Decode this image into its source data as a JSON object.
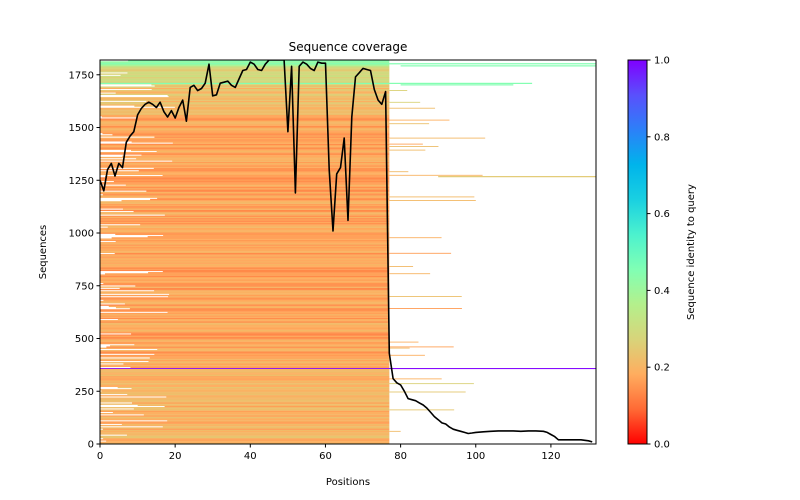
{
  "chart_data": {
    "type": "heatmap",
    "title": "Sequence coverage",
    "xlabel": "Positions",
    "ylabel": "Sequences",
    "xlim": [
      0,
      132
    ],
    "ylim": [
      0,
      1820
    ],
    "xticks": [
      0,
      20,
      40,
      60,
      80,
      100,
      120
    ],
    "yticks": [
      0,
      250,
      500,
      750,
      1000,
      1250,
      1500,
      1750
    ],
    "grid": false,
    "colorbar": {
      "label": "Sequence identity to query",
      "range": [
        0.0,
        1.0
      ],
      "ticks": [
        "0.0",
        "0.2",
        "0.4",
        "0.6",
        "0.8",
        "1.0"
      ],
      "colormap": "rainbow_r",
      "stops": [
        "#ff0000",
        "#ff6a35",
        "#ffad5f",
        "#d8d47a",
        "#b4f08c",
        "#80ffb4",
        "#4cf2ce",
        "#1ad0e1",
        "#00b4eb",
        "#2c80f8",
        "#5a50fc",
        "#8000ff"
      ]
    },
    "msa_bands": [
      {
        "from_seq": 1790,
        "to_seq": 1820,
        "from_pos": 0,
        "to_pos": 77,
        "identity": 0.42
      },
      {
        "from_seq": 1700,
        "to_seq": 1790,
        "from_pos": 0,
        "to_pos": 77,
        "identity": 0.27
      },
      {
        "from_seq": 1560,
        "to_seq": 1700,
        "from_pos": 0,
        "to_pos": 77,
        "identity": 0.22
      },
      {
        "from_seq": 360,
        "to_seq": 1560,
        "from_pos": 0,
        "to_pos": 77,
        "identity": 0.17
      },
      {
        "from_seq": 356,
        "to_seq": 360,
        "from_pos": 0,
        "to_pos": 132,
        "identity": 1.0
      },
      {
        "from_seq": 0,
        "to_seq": 356,
        "from_pos": 0,
        "to_pos": 77,
        "identity": 0.2
      }
    ],
    "series": [
      {
        "name": "coverage",
        "color": "#000000",
        "x": [
          0,
          1,
          2,
          3,
          4,
          5,
          6,
          7,
          8,
          9,
          10,
          11,
          12,
          13,
          14,
          15,
          16,
          17,
          18,
          19,
          20,
          21,
          22,
          23,
          24,
          25,
          26,
          27,
          28,
          29,
          30,
          31,
          32,
          33,
          34,
          35,
          36,
          37,
          38,
          39,
          40,
          41,
          42,
          43,
          44,
          45,
          46,
          47,
          48,
          49,
          50,
          51,
          52,
          53,
          54,
          55,
          56,
          57,
          58,
          59,
          60,
          61,
          62,
          63,
          64,
          65,
          66,
          67,
          68,
          69,
          70,
          71,
          72,
          73,
          74,
          75,
          76,
          77,
          78,
          79,
          80,
          81,
          82,
          83,
          84,
          85,
          86,
          87,
          88,
          89,
          90,
          91,
          92,
          93,
          94,
          95,
          96,
          97,
          98,
          99,
          100,
          102,
          104,
          106,
          108,
          110,
          112,
          114,
          116,
          118,
          119,
          120,
          121,
          122,
          124,
          126,
          128,
          130,
          131
        ],
        "y": [
          1250,
          1200,
          1300,
          1330,
          1270,
          1330,
          1310,
          1430,
          1460,
          1480,
          1560,
          1590,
          1610,
          1620,
          1610,
          1595,
          1620,
          1575,
          1550,
          1580,
          1545,
          1595,
          1630,
          1530,
          1690,
          1700,
          1675,
          1685,
          1710,
          1800,
          1650,
          1655,
          1710,
          1715,
          1720,
          1700,
          1690,
          1730,
          1770,
          1775,
          1810,
          1800,
          1775,
          1770,
          1800,
          1820,
          1820,
          1820,
          1820,
          1820,
          1480,
          1790,
          1190,
          1790,
          1810,
          1800,
          1780,
          1770,
          1810,
          1805,
          1805,
          1300,
          1010,
          1280,
          1310,
          1450,
          1060,
          1550,
          1740,
          1760,
          1780,
          1775,
          1770,
          1680,
          1630,
          1610,
          1670,
          430,
          310,
          290,
          280,
          250,
          215,
          210,
          205,
          195,
          185,
          170,
          150,
          130,
          115,
          100,
          95,
          80,
          70,
          65,
          60,
          55,
          50,
          52,
          55,
          58,
          60,
          62,
          62,
          62,
          60,
          62,
          62,
          60,
          55,
          45,
          35,
          20,
          20,
          20,
          20,
          15,
          10
        ]
      }
    ]
  }
}
